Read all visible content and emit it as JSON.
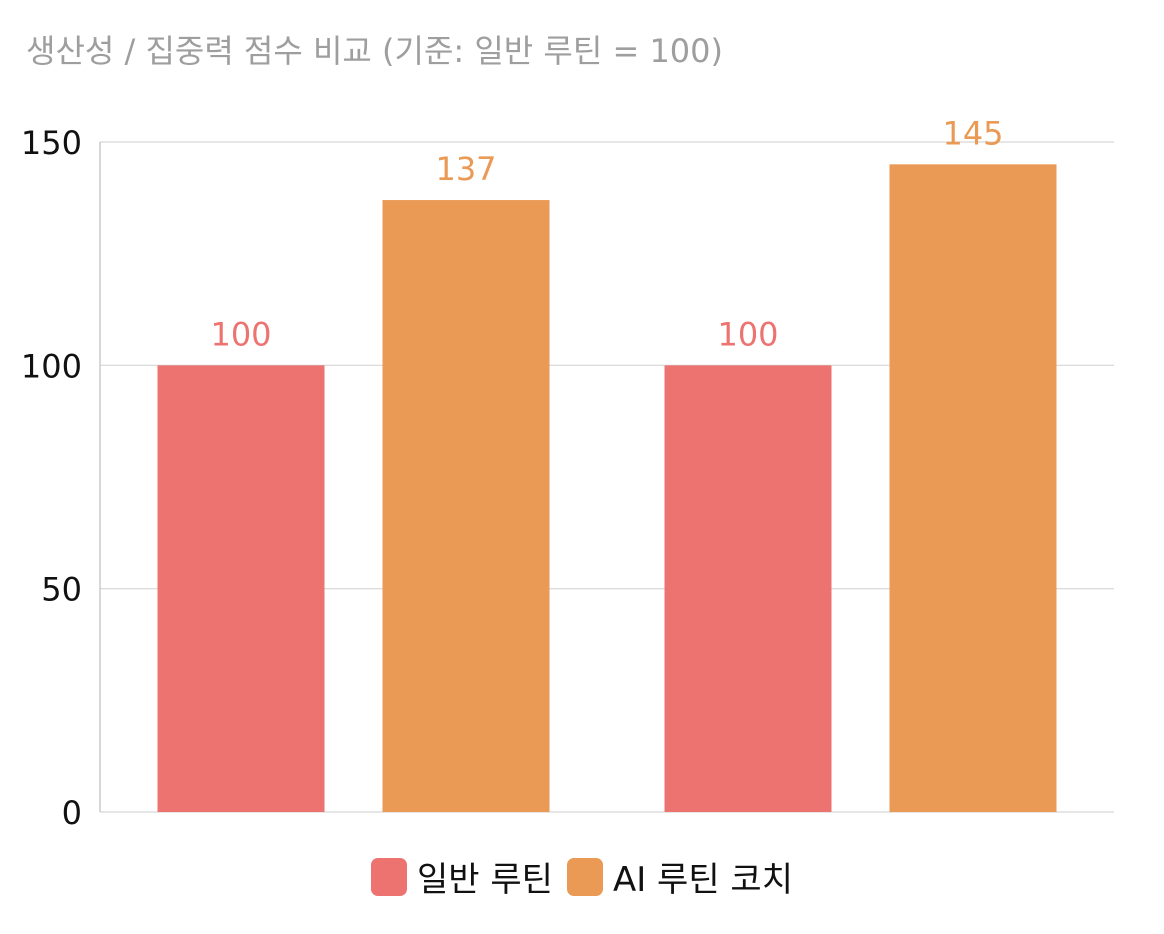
{
  "chart_data": {
    "type": "bar",
    "title": "생산성 / 집중력 점수 비교 (기준: 일반 루틴 = 100)",
    "categories": [
      "",
      ""
    ],
    "series": [
      {
        "name": "일반 루틴",
        "color": "#ed7370",
        "values": [
          100,
          100
        ]
      },
      {
        "name": "AI 루틴 코치",
        "color": "#ea9a54",
        "values": [
          137,
          145
        ]
      }
    ],
    "xlabel": "",
    "ylabel": "",
    "ylim": [
      0,
      150
    ],
    "yticks": [
      0,
      50,
      100,
      150
    ],
    "ytick_labels": [
      "0",
      "50",
      "100",
      "150"
    ],
    "grid": true,
    "legend_position": "bottom-center",
    "data_labels": true
  }
}
